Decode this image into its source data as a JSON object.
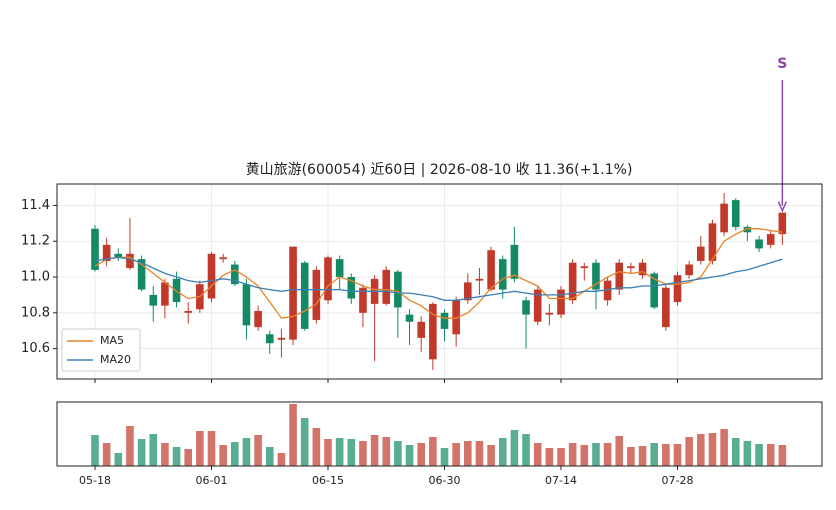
{
  "chart_data": [
    {
      "type": "candlestick",
      "title": "黄山旅游(600054) 近60日  |  2026-08-10 收 11.36(+1.1%)",
      "categories": [
        "05-18",
        null,
        null,
        null,
        null,
        null,
        null,
        null,
        null,
        null,
        "06-01",
        null,
        null,
        null,
        null,
        null,
        null,
        null,
        null,
        null,
        "06-15",
        null,
        null,
        null,
        null,
        null,
        null,
        null,
        null,
        null,
        "06-30",
        null,
        null,
        null,
        null,
        null,
        null,
        null,
        null,
        null,
        "07-14",
        null,
        null,
        null,
        null,
        null,
        null,
        null,
        null,
        null,
        "07-28",
        null,
        null,
        null,
        null,
        null,
        null,
        null,
        null,
        null
      ],
      "open": [
        11.27,
        11.09,
        11.13,
        11.05,
        11.1,
        10.9,
        10.84,
        10.99,
        10.8,
        10.82,
        10.88,
        11.1,
        11.07,
        10.96,
        10.72,
        10.68,
        10.65,
        10.65,
        11.08,
        10.76,
        10.87,
        11.1,
        11.0,
        10.8,
        10.85,
        10.85,
        11.03,
        10.79,
        10.66,
        10.54,
        10.8,
        10.68,
        10.87,
        10.98,
        10.93,
        11.1,
        11.18,
        10.87,
        10.75,
        10.79,
        10.79,
        10.87,
        11.05,
        11.08,
        10.87,
        10.93,
        11.05,
        11.01,
        11.02,
        10.72,
        10.86,
        11.01,
        11.09,
        11.09,
        11.25,
        11.43,
        11.28,
        11.21,
        11.18,
        11.24
      ],
      "high": [
        11.29,
        11.22,
        11.16,
        11.33,
        11.12,
        10.95,
        10.99,
        11.03,
        10.86,
        10.98,
        11.14,
        11.13,
        11.09,
        10.99,
        10.84,
        10.7,
        10.71,
        11.17,
        11.09,
        11.06,
        11.12,
        11.12,
        11.02,
        10.96,
        11.01,
        11.06,
        11.04,
        10.82,
        10.78,
        10.86,
        10.82,
        10.89,
        11.02,
        11.05,
        11.17,
        11.12,
        11.28,
        10.89,
        10.95,
        10.85,
        10.95,
        11.1,
        11.08,
        11.1,
        11.0,
        11.1,
        11.08,
        11.1,
        11.03,
        10.96,
        11.03,
        11.09,
        11.23,
        11.32,
        11.47,
        11.44,
        11.29,
        11.23,
        11.26,
        11.36
      ],
      "low": [
        11.03,
        11.06,
        11.09,
        11.04,
        10.92,
        10.75,
        10.77,
        10.83,
        10.74,
        10.8,
        10.86,
        11.08,
        10.95,
        10.65,
        10.7,
        10.57,
        10.55,
        10.62,
        10.7,
        10.74,
        10.85,
        10.93,
        10.85,
        10.72,
        10.53,
        10.84,
        10.66,
        10.62,
        10.58,
        10.48,
        10.64,
        10.61,
        10.85,
        10.9,
        10.92,
        10.88,
        10.97,
        10.6,
        10.73,
        10.73,
        10.77,
        10.85,
        10.98,
        10.82,
        10.84,
        10.9,
        11.02,
        10.99,
        10.82,
        10.7,
        10.84,
        10.99,
        11.07,
        11.07,
        11.23,
        11.26,
        11.2,
        11.14,
        11.16,
        11.18
      ],
      "close": [
        11.04,
        11.18,
        11.11,
        11.13,
        10.93,
        10.84,
        10.97,
        10.86,
        10.81,
        10.96,
        11.13,
        11.11,
        10.96,
        10.73,
        10.81,
        10.63,
        10.66,
        11.17,
        10.71,
        11.04,
        11.11,
        11.0,
        10.88,
        10.94,
        10.99,
        11.04,
        10.83,
        10.75,
        10.75,
        10.85,
        10.71,
        10.87,
        10.97,
        10.99,
        11.15,
        10.93,
        10.99,
        10.79,
        10.93,
        10.8,
        10.93,
        11.08,
        11.06,
        10.93,
        10.98,
        11.08,
        11.06,
        11.08,
        10.83,
        10.94,
        11.01,
        11.07,
        11.17,
        11.3,
        11.41,
        11.28,
        11.25,
        11.16,
        11.24,
        11.36
      ],
      "up_color": "#c0392b",
      "down_color": "#138a63",
      "ylim": [
        10.43,
        11.52
      ],
      "yticks": [
        10.6,
        10.8,
        {
          "value": 11,
          "label": "11.0"
        },
        11.2,
        11.4
      ],
      "grid": true,
      "lines": [
        {
          "name": "MA5",
          "color": "#e8832a",
          "values": [
            11.06,
            11.1,
            11.11,
            11.11,
            11.07,
            11.02,
            10.97,
            10.92,
            10.88,
            10.89,
            10.95,
            11.01,
            11.04,
            11.0,
            10.95,
            10.86,
            10.77,
            10.78,
            10.81,
            10.85,
            10.95,
            11.0,
            10.98,
            10.95,
            10.93,
            10.93,
            10.92,
            10.87,
            10.84,
            10.79,
            10.77,
            10.77,
            10.8,
            10.86,
            10.94,
            10.99,
            11.01,
            10.98,
            10.95,
            10.88,
            10.88,
            10.88,
            10.92,
            10.96,
            11.0,
            11.03,
            11.02,
            11.03,
            10.99,
            10.96,
            10.96,
            10.97,
            11.0,
            11.1,
            11.2,
            11.24,
            11.27,
            11.27,
            11.26,
            11.25
          ]
        },
        {
          "name": "MA20",
          "color": "#3a7fb5",
          "values": [
            11.09,
            11.1,
            11.11,
            11.1,
            11.08,
            11.05,
            11.02,
            11.0,
            10.98,
            10.97,
            10.98,
            10.99,
            10.98,
            10.96,
            10.94,
            10.93,
            10.92,
            10.93,
            10.93,
            10.93,
            10.93,
            10.93,
            10.92,
            10.92,
            10.92,
            10.92,
            10.91,
            10.91,
            10.9,
            10.89,
            10.87,
            10.87,
            10.88,
            10.89,
            10.9,
            10.91,
            10.92,
            10.91,
            10.9,
            10.9,
            10.9,
            10.91,
            10.92,
            10.92,
            10.93,
            10.94,
            10.94,
            10.95,
            10.95,
            10.96,
            10.97,
            10.98,
            10.99,
            11.0,
            11.01,
            11.03,
            11.04,
            11.06,
            11.08,
            11.1
          ]
        }
      ],
      "legend": "lower left",
      "annotations": [
        {
          "label": "S",
          "index": 59,
          "color": "#8e44ad"
        }
      ]
    },
    {
      "type": "volume",
      "values": [
        31,
        23,
        13,
        40,
        27,
        32,
        23,
        19,
        17,
        35,
        35,
        21,
        24,
        28,
        31,
        19,
        13,
        62,
        48,
        38,
        27,
        28,
        27,
        25,
        31,
        29,
        25,
        21,
        23,
        29,
        18,
        23,
        25,
        25,
        21,
        28,
        36,
        32,
        23,
        18,
        18,
        23,
        21,
        23,
        23,
        30,
        19,
        20,
        23,
        22,
        22,
        29,
        32,
        33,
        37,
        28,
        25,
        22,
        22,
        21
      ],
      "ylim": [
        0,
        64
      ]
    }
  ]
}
